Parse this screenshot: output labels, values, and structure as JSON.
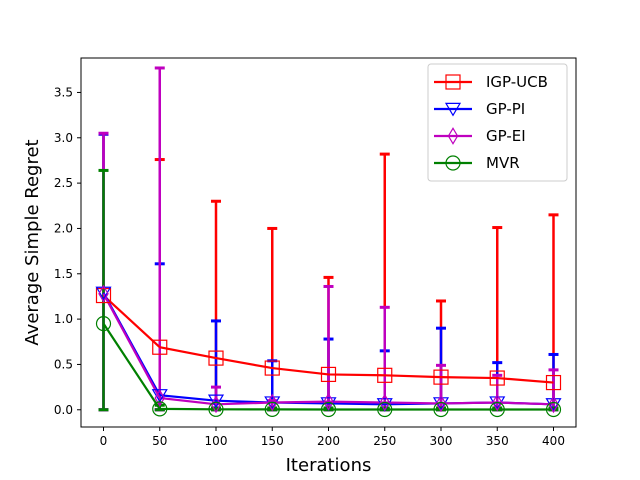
{
  "chart_data": {
    "type": "line",
    "title": "",
    "xlabel": "Iterations",
    "ylabel": "Average Simple Regret",
    "x": [
      0,
      50,
      100,
      150,
      200,
      250,
      300,
      350,
      400
    ],
    "xticks": [
      "0",
      "50",
      "100",
      "150",
      "200",
      "250",
      "300",
      "350",
      "400"
    ],
    "yticks": [
      "0.0",
      "0.5",
      "1.0",
      "1.5",
      "2.0",
      "2.5",
      "3.0",
      "3.5"
    ],
    "xlim": [
      -20,
      420
    ],
    "ylim": [
      -0.19,
      3.88
    ],
    "grid": false,
    "legend_position": "top-right",
    "series": [
      {
        "name": "IGP-UCB",
        "color": "#ff0000",
        "marker": "square",
        "y": [
          1.26,
          0.69,
          0.57,
          0.46,
          0.39,
          0.38,
          0.36,
          0.35,
          0.3
        ],
        "err_upper": [
          3.04,
          2.76,
          2.3,
          2.0,
          1.46,
          2.82,
          1.2,
          2.01,
          2.15
        ],
        "err_lower": [
          0.0,
          0.0,
          0.0,
          0.0,
          0.0,
          0.0,
          0.0,
          0.0,
          0.0
        ]
      },
      {
        "name": "GP-PI",
        "color": "#0000ff",
        "marker": "triangle-down",
        "y": [
          1.29,
          0.16,
          0.1,
          0.08,
          0.07,
          0.06,
          0.07,
          0.08,
          0.06
        ],
        "err_upper": [
          3.04,
          1.61,
          0.98,
          0.54,
          0.78,
          0.65,
          0.9,
          0.52,
          0.61
        ],
        "err_lower": [
          0.0,
          0.0,
          0.0,
          0.0,
          0.0,
          0.0,
          0.0,
          0.0,
          0.0
        ]
      },
      {
        "name": "GP-EI",
        "color": "#bf00bf",
        "marker": "diamond",
        "y": [
          1.28,
          0.13,
          0.06,
          0.08,
          0.09,
          0.08,
          0.07,
          0.08,
          0.06
        ],
        "err_upper": [
          3.05,
          3.77,
          0.25,
          0.1,
          1.36,
          1.13,
          0.49,
          0.38,
          0.44
        ],
        "err_lower": [
          0.0,
          0.0,
          0.0,
          0.0,
          0.0,
          0.0,
          0.0,
          0.0,
          0.0
        ]
      },
      {
        "name": "MVR",
        "color": "#008000",
        "marker": "circle",
        "y": [
          0.95,
          0.01,
          0.005,
          0.004,
          0.003,
          0.003,
          0.003,
          0.003,
          0.003
        ],
        "err_upper": [
          2.64,
          0.05,
          0.02,
          0.02,
          0.02,
          0.02,
          0.02,
          0.02,
          0.02
        ],
        "err_lower": [
          0.0,
          0.0,
          0.0,
          0.0,
          0.0,
          0.0,
          0.0,
          0.0,
          0.0
        ]
      }
    ]
  }
}
